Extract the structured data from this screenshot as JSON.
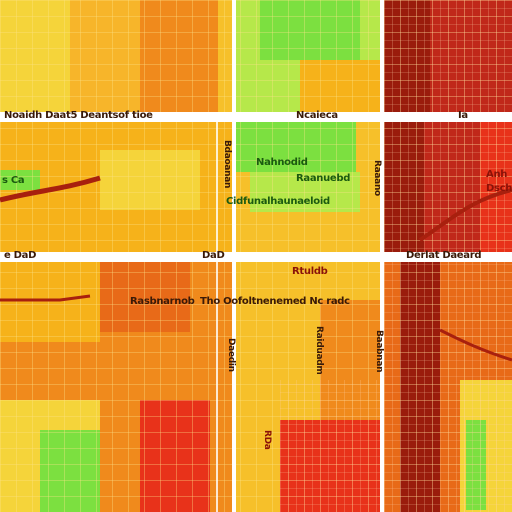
{
  "map": {
    "labels": {
      "street_top_left": "Noaidh Daat5 Deantsof tioe",
      "street_top_mid": "Ncaieca",
      "street_top_right": "Ia",
      "district_left_mid": "s Ca",
      "district_green_1": "Nahnodid",
      "district_green_2": "Raanuebd",
      "district_green_3": "Cidfunalhaunaeloid",
      "street_mid_left": "e DaD",
      "street_mid_small": "DaD",
      "street_mid_right": "Derlat Daeard",
      "red_district_1": "Anh",
      "red_district_2": "Dsch",
      "pocket_label": "Rtuldb",
      "district_bottom_left": "Rasbnarnob",
      "district_main": "Tho Oofoltnenemed Nc radc",
      "vert_1": "Bdaoanan",
      "vert_2": "Raaano",
      "vert_3": "Daedin",
      "vert_4": "Raiduadm",
      "vert_5": "Baabnan",
      "vert_6": "RDa"
    },
    "colors": {
      "base": "#f6b21a",
      "yellow": "#f5d43a",
      "orange": "#f08a1c",
      "red": "#e8321a",
      "dark_red": "#9a1c0c",
      "green": "#7ce040",
      "light_green": "#b6e84a",
      "road": "#ffffff",
      "grid": "#fde48a"
    }
  }
}
